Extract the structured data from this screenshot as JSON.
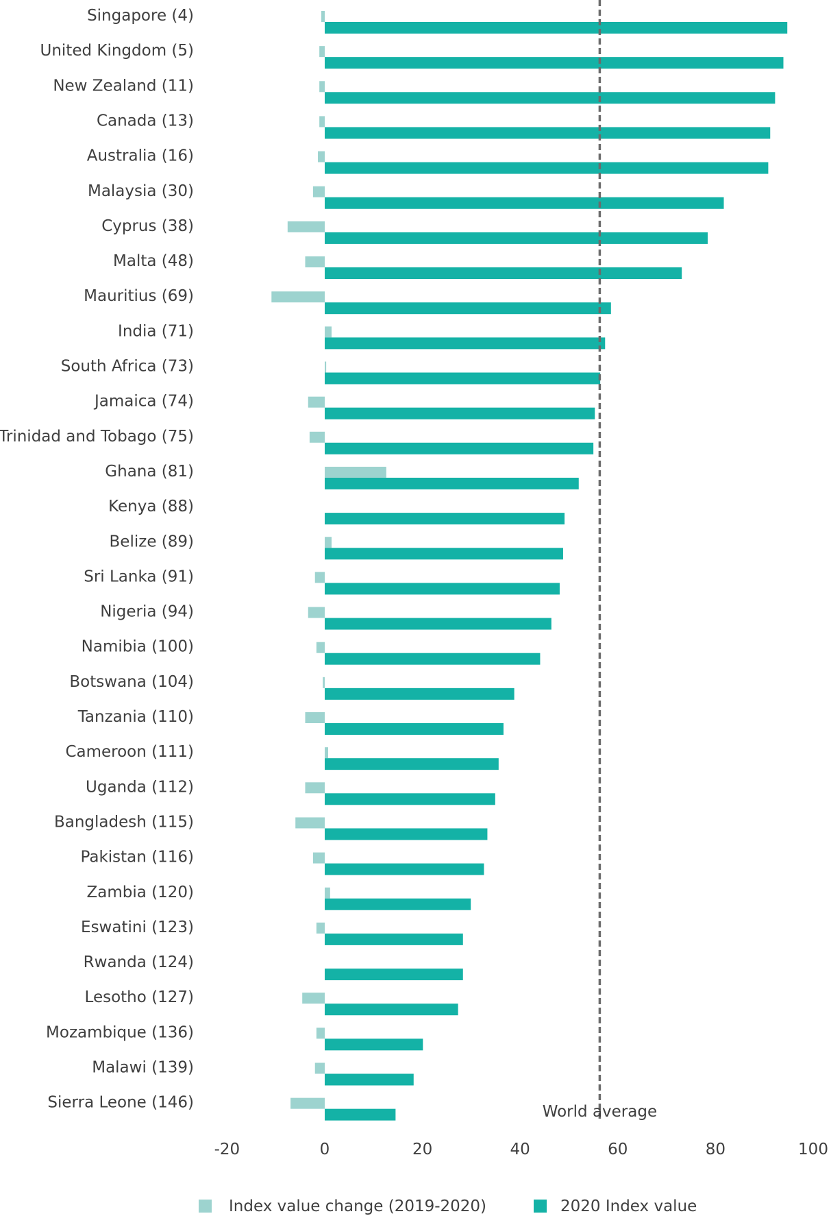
{
  "chart_data": {
    "type": "bar",
    "orientation": "horizontal",
    "categories": [
      "Singapore (4)",
      "United Kingdom (5)",
      "New Zealand (11)",
      "Canada (13)",
      "Australia (16)",
      "Malaysia (30)",
      "Cyprus (38)",
      "Malta (48)",
      "Mauritius (69)",
      "India (71)",
      "South Africa (73)",
      "Jamaica (74)",
      "Trinidad and Tobago (75)",
      "Ghana (81)",
      "Kenya (88)",
      "Belize (89)",
      "Sri Lanka (91)",
      "Nigeria (94)",
      "Namibia (100)",
      "Botswana (104)",
      "Tanzania (110)",
      "Cameroon (111)",
      "Uganda (112)",
      "Bangladesh (115)",
      "Pakistan (116)",
      "Zambia (120)",
      "Eswatini (123)",
      "Rwanda (124)",
      "Lesotho (127)",
      "Mozambique (136)",
      "Malawi (139)",
      "Sierra Leone (146)"
    ],
    "series": [
      {
        "name": "Index value change (2019-2020)",
        "color": "#9dd3cf",
        "values": [
          -0.7,
          -1.1,
          -1.1,
          -1.1,
          -1.4,
          -2.4,
          -7.6,
          -4.0,
          -10.9,
          1.4,
          0.3,
          -3.4,
          -3.1,
          12.6,
          0,
          1.4,
          -2.0,
          -3.4,
          -1.7,
          -0.4,
          -4.0,
          0.7,
          -4.0,
          -6.0,
          -2.4,
          1.1,
          -1.7,
          0,
          -4.6,
          -1.7,
          -2.0,
          -7.0
        ]
      },
      {
        "name": "2020 Index value",
        "color": "#14b2a6",
        "values": [
          94.7,
          93.9,
          92.2,
          91.2,
          90.8,
          81.7,
          78.4,
          73.1,
          58.6,
          57.4,
          56.4,
          55.3,
          55.0,
          52.0,
          49.1,
          48.8,
          48.1,
          46.4,
          44.1,
          38.8,
          36.6,
          35.6,
          34.9,
          33.3,
          32.6,
          29.9,
          28.3,
          28.3,
          27.3,
          20.1,
          18.2,
          14.5
        ]
      }
    ],
    "xlim": [
      -20,
      100
    ],
    "xticks": [
      -20,
      0,
      20,
      40,
      60,
      80,
      100
    ],
    "reference_line": {
      "value": 56.3,
      "label": "World average",
      "color": "#6b6b6b"
    },
    "grid": false,
    "legend_position": "bottom"
  }
}
